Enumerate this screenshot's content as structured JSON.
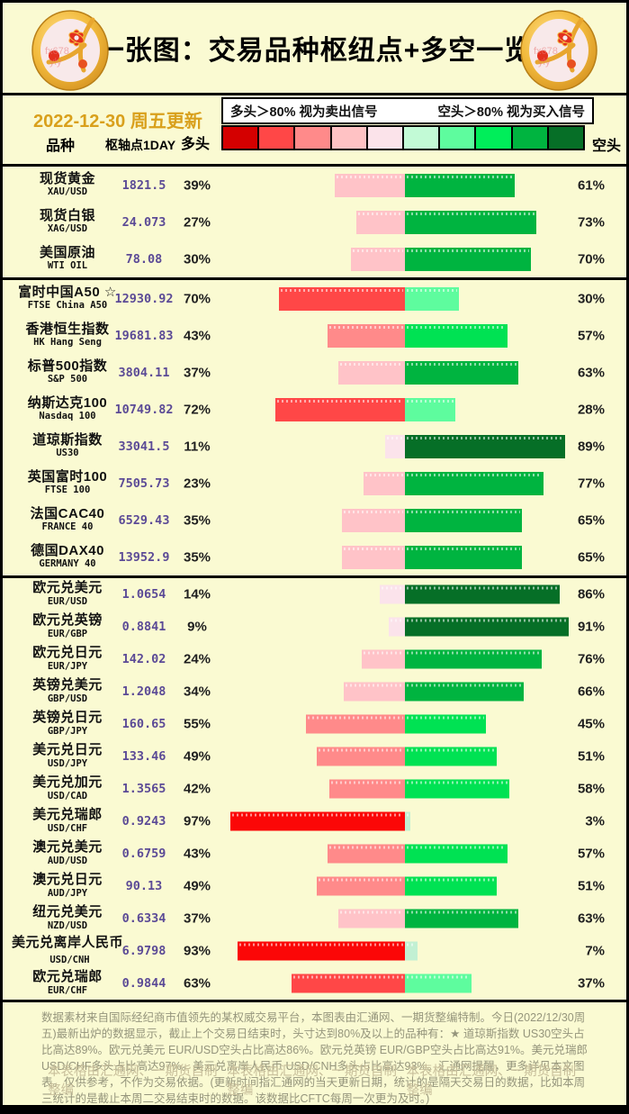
{
  "title": "一张图：交易品种枢纽点+多空一览",
  "date_line": "2022-12-30 周五更新",
  "legend": {
    "long_signal": "多头＞80% 视为卖出信号",
    "short_signal": "空头＞80% 视为买入信号"
  },
  "header": {
    "symbol": "品种",
    "pivot": "枢轴点1DAY",
    "long": "多头",
    "short": "空头"
  },
  "scale_colors": [
    "#D40000",
    "#FF4747",
    "#FF8A8A",
    "#FFC2C4",
    "#FBE3EA",
    "#C2FAD6",
    "#5EFC9E",
    "#00EE5A",
    "#00B440",
    "#066F27"
  ],
  "bar_colors": {
    "long": [
      [
        80,
        "#FB0707"
      ],
      [
        60,
        "#FF4747"
      ],
      [
        40,
        "#FF8A8A"
      ],
      [
        20,
        "#FFC3C8"
      ],
      [
        0,
        "#FBE3EB"
      ]
    ],
    "short": [
      [
        80,
        "#066F27"
      ],
      [
        60,
        "#00B440"
      ],
      [
        40,
        "#00E253"
      ],
      [
        20,
        "#5EFC9E"
      ],
      [
        0,
        "#C2F0D3"
      ]
    ]
  },
  "groups": [
    {
      "rows": [
        {
          "name_cn": "现货黄金",
          "name_en": "XAU/USD",
          "pivot": "1821.5",
          "long": 39,
          "short": 61
        },
        {
          "name_cn": "现货白银",
          "name_en": "XAG/USD",
          "pivot": "24.073",
          "long": 27,
          "short": 73
        },
        {
          "name_cn": "美国原油",
          "name_en": "WTI OIL",
          "pivot": "78.08",
          "long": 30,
          "short": 70
        }
      ]
    },
    {
      "rows": [
        {
          "name_cn": "富时中国A50 ☆",
          "name_en": "FTSE China A50",
          "pivot": "12930.92",
          "long": 70,
          "short": 30
        },
        {
          "name_cn": "香港恒生指数",
          "name_en": "HK Hang Seng",
          "pivot": "19681.83",
          "long": 43,
          "short": 57
        },
        {
          "name_cn": "标普500指数",
          "name_en": "S&P 500",
          "pivot": "3804.11",
          "long": 37,
          "short": 63
        },
        {
          "name_cn": "纳斯达克100",
          "name_en": "Nasdaq 100",
          "pivot": "10749.82",
          "long": 72,
          "short": 28
        },
        {
          "name_cn": "道琼斯指数",
          "name_en": "US30",
          "pivot": "33041.5",
          "long": 11,
          "short": 89
        },
        {
          "name_cn": "英国富时100",
          "name_en": "FTSE 100",
          "pivot": "7505.73",
          "long": 23,
          "short": 77
        },
        {
          "name_cn": "法国CAC40",
          "name_en": "FRANCE 40",
          "pivot": "6529.43",
          "long": 35,
          "short": 65
        },
        {
          "name_cn": "德国DAX40",
          "name_en": "GERMANY 40",
          "pivot": "13952.9",
          "long": 35,
          "short": 65
        }
      ]
    },
    {
      "rows": [
        {
          "name_cn": "欧元兑美元",
          "name_en": "EUR/USD",
          "pivot": "1.0654",
          "long": 14,
          "short": 86
        },
        {
          "name_cn": "欧元兑英镑",
          "name_en": "EUR/GBP",
          "pivot": "0.8841",
          "long": 9,
          "short": 91
        },
        {
          "name_cn": "欧元兑日元",
          "name_en": "EUR/JPY",
          "pivot": "142.02",
          "long": 24,
          "short": 76
        },
        {
          "name_cn": "英镑兑美元",
          "name_en": "GBP/USD",
          "pivot": "1.2048",
          "long": 34,
          "short": 66
        },
        {
          "name_cn": "英镑兑日元",
          "name_en": "GBP/JPY",
          "pivot": "160.65",
          "long": 55,
          "short": 45
        },
        {
          "name_cn": "美元兑日元",
          "name_en": "USD/JPY",
          "pivot": "133.46",
          "long": 49,
          "short": 51
        },
        {
          "name_cn": "美元兑加元",
          "name_en": "USD/CAD",
          "pivot": "1.3565",
          "long": 42,
          "short": 58
        },
        {
          "name_cn": "美元兑瑞郎",
          "name_en": "USD/CHF",
          "pivot": "0.9243",
          "long": 97,
          "short": 3
        },
        {
          "name_cn": "澳元兑美元",
          "name_en": "AUD/USD",
          "pivot": "0.6759",
          "long": 43,
          "short": 57
        },
        {
          "name_cn": "澳元兑日元",
          "name_en": "AUD/JPY",
          "pivot": "90.13",
          "long": 49,
          "short": 51
        },
        {
          "name_cn": "纽元兑美元",
          "name_en": "NZD/USD",
          "pivot": "0.6334",
          "long": 37,
          "short": 63
        },
        {
          "name_cn": "美元兑离岸人民币",
          "name_en": "USD/CNH",
          "pivot": "6.9798",
          "long": 93,
          "short": 7
        },
        {
          "name_cn": "欧元兑瑞郎",
          "name_en": "EUR/CHF",
          "pivot": "0.9844",
          "long": 63,
          "short": 37
        }
      ]
    }
  ],
  "footer": {
    "paragraph": "数据素材来自国际经纪商市值领先的某权威交易平台，本图表由汇通网、一期货整编特制。今日(2022/12/30周五)最新出炉的数据显示，截止上个交易日结束时，头寸达到80%及以上的品种有：★ 道琼斯指数 US30空头占比高达89%。欧元兑美元 EUR/USD空头占比高达86%。欧元兑英镑 EUR/GBP空头占比高达91%。美元兑瑞郎 USD/CHF多头占比高达97%。美元兑离岸人民币 USD/CNH多头占比高达93%。汇通网提醒，更多详见本文图表。仅供参考，不作为交易依据。(更新时间指汇通网的当天更新日期，统计的是隔天交易日的数据，比如本周三统计的是截止本周二交易结束时的数据。该数据比CFTC每周一次更为及时。)",
    "watermark": "本表格由汇通网、一期货自制整编"
  },
  "colors": {
    "background": "#FAFAD2",
    "date_text": "#D9A01C",
    "pivot_text": "#5B4A96",
    "footer_text": "#95957C",
    "watermark_text": "#C8BF9B"
  },
  "chart_data": {
    "type": "bar",
    "subtype": "diverging-horizontal",
    "title": "一张图：交易品种枢纽点+多空一览",
    "legend_position": "top",
    "xlim": [
      -100,
      100
    ],
    "categories": [
      "XAU/USD",
      "XAG/USD",
      "WTI OIL",
      "FTSE China A50",
      "HK Hang Seng",
      "S&P 500",
      "Nasdaq 100",
      "US30",
      "FTSE 100",
      "FRANCE 40",
      "GERMANY 40",
      "EUR/USD",
      "EUR/GBP",
      "EUR/JPY",
      "GBP/USD",
      "GBP/JPY",
      "USD/JPY",
      "USD/CAD",
      "USD/CHF",
      "AUD/USD",
      "AUD/JPY",
      "NZD/USD",
      "USD/CNH",
      "EUR/CHF"
    ],
    "series": [
      {
        "name": "多头",
        "values": [
          39,
          27,
          30,
          70,
          43,
          37,
          72,
          11,
          23,
          35,
          35,
          14,
          9,
          24,
          34,
          55,
          49,
          42,
          97,
          43,
          49,
          37,
          93,
          63
        ]
      },
      {
        "name": "空头",
        "values": [
          61,
          73,
          70,
          30,
          57,
          63,
          28,
          89,
          77,
          65,
          65,
          86,
          91,
          76,
          66,
          45,
          51,
          58,
          3,
          57,
          51,
          63,
          7,
          37
        ]
      }
    ],
    "pivots": [
      1821.5,
      24.073,
      78.08,
      12930.92,
      19681.83,
      3804.11,
      10749.82,
      33041.5,
      7505.73,
      6529.43,
      13952.9,
      1.0654,
      0.8841,
      142.02,
      1.2048,
      160.65,
      133.46,
      1.3565,
      0.9243,
      0.6759,
      90.13,
      0.6334,
      6.9798,
      0.9844
    ]
  }
}
